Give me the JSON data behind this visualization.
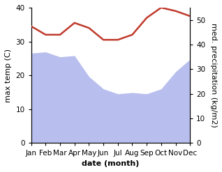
{
  "months": [
    "Jan",
    "Feb",
    "Mar",
    "Apr",
    "May",
    "Jun",
    "Jul",
    "Aug",
    "Sep",
    "Oct",
    "Nov",
    "Dec"
  ],
  "temp": [
    34.5,
    32.0,
    32.0,
    35.5,
    34.0,
    30.5,
    30.5,
    32.0,
    37.0,
    40.0,
    39.0,
    37.5
  ],
  "precip": [
    36.5,
    37.0,
    35.0,
    35.5,
    27.0,
    22.0,
    20.0,
    20.5,
    20.0,
    22.0,
    29.0,
    34.0
  ],
  "temp_color": "#c0392b",
  "precip_fill_color": "#b8bfee",
  "ylim_temp": [
    0,
    40
  ],
  "ylim_precip": [
    0,
    55
  ],
  "yticks_temp": [
    0,
    10,
    20,
    30,
    40
  ],
  "yticks_precip": [
    0,
    10,
    20,
    30,
    40,
    50
  ],
  "xlabel": "date (month)",
  "ylabel_left": "max temp (C)",
  "ylabel_right": "med. precipitation (kg/m2)",
  "label_fontsize": 8,
  "tick_fontsize": 7.5,
  "temp_linewidth": 1.8
}
